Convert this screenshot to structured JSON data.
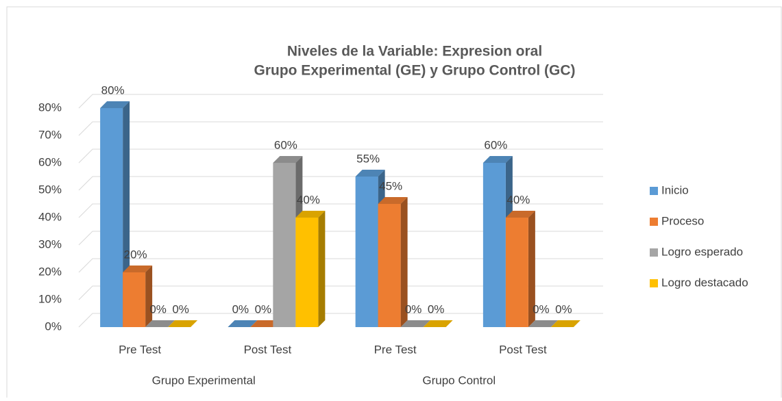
{
  "chart_data": {
    "type": "bar3d",
    "title": [
      "Niveles de la Variable: Expresion oral",
      "Grupo Experimental (GE) y Grupo Control (GC)"
    ],
    "categories": [
      "Pre Test",
      "Post Test",
      "Pre Test",
      "Post Test"
    ],
    "groups": [
      "Grupo Experimental",
      "Grupo Control"
    ],
    "series": [
      {
        "name": "Inicio",
        "color": "#5b9bd5",
        "values": [
          80,
          0,
          55,
          60
        ],
        "value_labels": [
          "80%",
          "0%",
          "55%",
          "60%"
        ]
      },
      {
        "name": "Proceso",
        "color": "#ed7d31",
        "values": [
          20,
          0,
          45,
          40
        ],
        "value_labels": [
          "20%",
          "0%",
          "45%",
          "40%"
        ]
      },
      {
        "name": "Logro esperado",
        "color": "#a5a5a5",
        "values": [
          0,
          60,
          0,
          0
        ],
        "value_labels": [
          "0%",
          "60%",
          "0%",
          "0%"
        ]
      },
      {
        "name": "Logro destacado",
        "color": "#ffc000",
        "values": [
          0,
          40,
          0,
          0
        ],
        "value_labels": [
          "0%",
          "40%",
          "0%",
          "0%"
        ]
      }
    ],
    "ylim": [
      0,
      80
    ],
    "yticks": [
      {
        "value": 0,
        "label": "0%"
      },
      {
        "value": 10,
        "label": "10%"
      },
      {
        "value": 20,
        "label": "20%"
      },
      {
        "value": 30,
        "label": "30%"
      },
      {
        "value": 40,
        "label": "40%"
      },
      {
        "value": 50,
        "label": "50%"
      },
      {
        "value": 60,
        "label": "60%"
      },
      {
        "value": 70,
        "label": "70%"
      },
      {
        "value": 80,
        "label": "80%"
      }
    ],
    "grid": true,
    "legend": "right"
  }
}
